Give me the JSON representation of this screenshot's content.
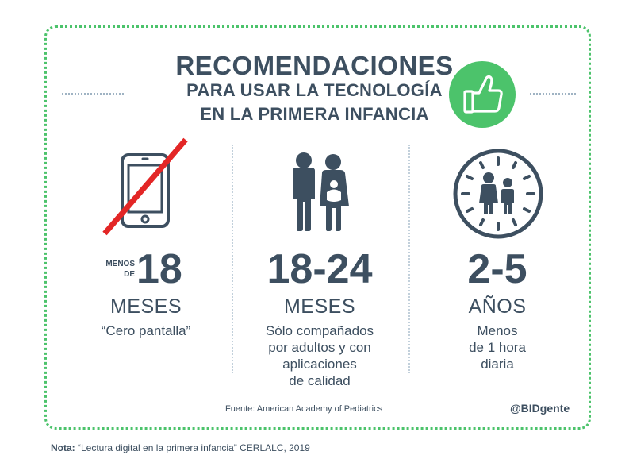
{
  "title": {
    "line1": "RECOMENDACIONES",
    "line2": "PARA USAR LA TECNOLOGÍA",
    "line3": "EN LA PRIMERA INFANCIA"
  },
  "badge_icon": "thumbs-up-icon",
  "colors": {
    "accent": "#4cc36b",
    "text": "#3d4f60",
    "strike": "#e32626"
  },
  "columns": [
    {
      "icon": "tablet-crossed-icon",
      "prefix_line1": "MENOS",
      "prefix_line2": "DE",
      "number": "18",
      "unit": "MESES",
      "desc_lines": [
        "“Cero pantalla”"
      ]
    },
    {
      "icon": "parents-with-baby-icon",
      "number": "18-24",
      "unit": "MESES",
      "desc_lines": [
        "Sólo compañados",
        "por adultos y con",
        "aplicaciones",
        "de calidad"
      ]
    },
    {
      "icon": "clock-with-children-icon",
      "number": "2-5",
      "unit": "AÑOS",
      "desc_lines": [
        "Menos",
        "de 1 hora",
        "diaria"
      ]
    }
  ],
  "source": "Fuente: American Academy of Pediatrics",
  "handle": "@BIDgente",
  "note": {
    "label": "Nota:",
    "text": " “Lectura digital en la primera infancia” CERLALC, 2019"
  }
}
